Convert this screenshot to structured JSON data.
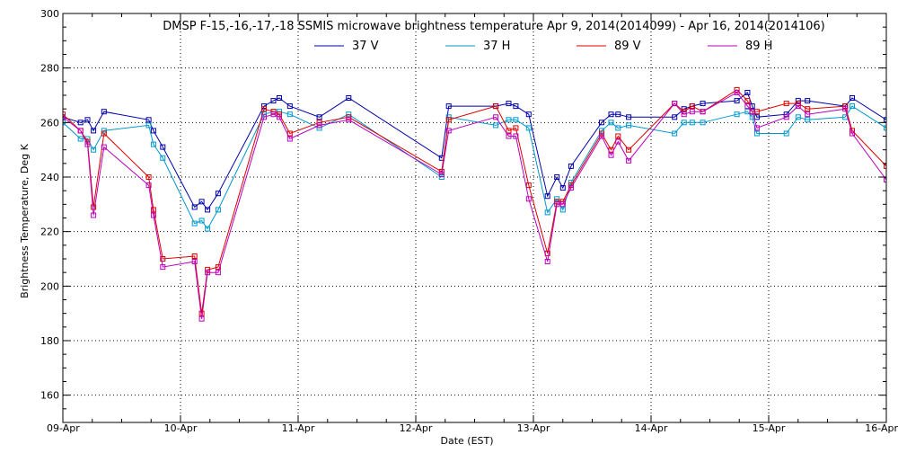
{
  "chart_data": {
    "type": "line",
    "title": "DMSP F-15,-16,-17,-18 SSMIS microwave brightness temperature Apr  9, 2014(2014099) - Apr 16, 2014(2014106)",
    "xlabel": "Date (EST)",
    "ylabel": "Brightness Temperature, Deg K",
    "xlim": [
      0,
      7
    ],
    "ylim": [
      150,
      300
    ],
    "x_ticks": [
      0,
      1,
      2,
      3,
      4,
      5,
      6,
      7
    ],
    "x_tick_labels": [
      "09-Apr",
      "10-Apr",
      "11-Apr",
      "12-Apr",
      "13-Apr",
      "14-Apr",
      "15-Apr",
      "16-Apr"
    ],
    "y_ticks": [
      160,
      180,
      200,
      220,
      240,
      260,
      280,
      300
    ],
    "y_tick_labels": [
      "160",
      "180",
      "200",
      "220",
      "240",
      "260",
      "280",
      "300"
    ],
    "grid": true,
    "legend_position": "top-center",
    "series": [
      {
        "name": "37 V",
        "color": "#0000aa",
        "points": [
          [
            0.0,
            262
          ],
          [
            0.15,
            260
          ],
          [
            0.21,
            261
          ],
          [
            0.26,
            257
          ],
          [
            0.35,
            264
          ],
          [
            0.73,
            261
          ],
          [
            0.77,
            257
          ],
          [
            0.85,
            251
          ],
          [
            1.12,
            229
          ],
          [
            1.18,
            231
          ],
          [
            1.23,
            228
          ],
          [
            1.32,
            234
          ],
          [
            1.71,
            266
          ],
          [
            1.79,
            268
          ],
          [
            1.84,
            269
          ],
          [
            1.93,
            266
          ],
          [
            2.18,
            262
          ],
          [
            2.43,
            269
          ],
          [
            3.22,
            247
          ],
          [
            3.28,
            266
          ],
          [
            3.68,
            266
          ],
          [
            3.79,
            267
          ],
          [
            3.85,
            266
          ],
          [
            3.96,
            263
          ],
          [
            4.12,
            233
          ],
          [
            4.2,
            240
          ],
          [
            4.25,
            236
          ],
          [
            4.32,
            244
          ],
          [
            4.58,
            260
          ],
          [
            4.66,
            263
          ],
          [
            4.72,
            263
          ],
          [
            4.81,
            262
          ],
          [
            5.2,
            262
          ],
          [
            5.28,
            265
          ],
          [
            5.35,
            266
          ],
          [
            5.44,
            267
          ],
          [
            5.73,
            268
          ],
          [
            5.82,
            271
          ],
          [
            5.86,
            266
          ],
          [
            5.9,
            262
          ],
          [
            6.15,
            263
          ],
          [
            6.25,
            268
          ],
          [
            6.33,
            268
          ],
          [
            6.65,
            266
          ],
          [
            6.71,
            269
          ],
          [
            7.0,
            261
          ]
        ]
      },
      {
        "name": "37 H",
        "color": "#0099cc",
        "points": [
          [
            0.0,
            260
          ],
          [
            0.15,
            254
          ],
          [
            0.21,
            254
          ],
          [
            0.26,
            250
          ],
          [
            0.35,
            257
          ],
          [
            0.73,
            259
          ],
          [
            0.77,
            252
          ],
          [
            0.85,
            247
          ],
          [
            1.12,
            223
          ],
          [
            1.18,
            224
          ],
          [
            1.23,
            221
          ],
          [
            1.32,
            228
          ],
          [
            1.71,
            263
          ],
          [
            1.79,
            264
          ],
          [
            1.84,
            264
          ],
          [
            1.93,
            263
          ],
          [
            2.18,
            258
          ],
          [
            2.43,
            263
          ],
          [
            3.22,
            240
          ],
          [
            3.28,
            262
          ],
          [
            3.68,
            259
          ],
          [
            3.79,
            261
          ],
          [
            3.85,
            261
          ],
          [
            3.96,
            258
          ],
          [
            4.12,
            227
          ],
          [
            4.2,
            232
          ],
          [
            4.25,
            228
          ],
          [
            4.32,
            238
          ],
          [
            4.58,
            257
          ],
          [
            4.66,
            260
          ],
          [
            4.72,
            258
          ],
          [
            4.81,
            259
          ],
          [
            5.2,
            256
          ],
          [
            5.28,
            260
          ],
          [
            5.35,
            260
          ],
          [
            5.44,
            260
          ],
          [
            5.73,
            263
          ],
          [
            5.82,
            264
          ],
          [
            5.86,
            262
          ],
          [
            5.9,
            256
          ],
          [
            6.15,
            256
          ],
          [
            6.25,
            262
          ],
          [
            6.33,
            261
          ],
          [
            6.65,
            262
          ],
          [
            6.71,
            266
          ],
          [
            7.0,
            258
          ]
        ]
      },
      {
        "name": "89 V",
        "color": "#dd0000",
        "points": [
          [
            0.0,
            263
          ],
          [
            0.15,
            257
          ],
          [
            0.21,
            253
          ],
          [
            0.26,
            229
          ],
          [
            0.35,
            256
          ],
          [
            0.73,
            240
          ],
          [
            0.77,
            228
          ],
          [
            0.85,
            210
          ],
          [
            1.12,
            211
          ],
          [
            1.18,
            190
          ],
          [
            1.23,
            206
          ],
          [
            1.32,
            207
          ],
          [
            1.71,
            265
          ],
          [
            1.79,
            264
          ],
          [
            1.84,
            263
          ],
          [
            1.93,
            256
          ],
          [
            2.18,
            260
          ],
          [
            2.43,
            262
          ],
          [
            3.22,
            242
          ],
          [
            3.28,
            261
          ],
          [
            3.68,
            266
          ],
          [
            3.79,
            257
          ],
          [
            3.85,
            258
          ],
          [
            3.96,
            237
          ],
          [
            4.12,
            212
          ],
          [
            4.2,
            231
          ],
          [
            4.25,
            231
          ],
          [
            4.32,
            237
          ],
          [
            4.58,
            256
          ],
          [
            4.66,
            250
          ],
          [
            4.72,
            255
          ],
          [
            4.81,
            250
          ],
          [
            5.2,
            267
          ],
          [
            5.28,
            264
          ],
          [
            5.35,
            266
          ],
          [
            5.44,
            264
          ],
          [
            5.73,
            272
          ],
          [
            5.82,
            268
          ],
          [
            5.86,
            264
          ],
          [
            5.9,
            264
          ],
          [
            6.15,
            267
          ],
          [
            6.25,
            267
          ],
          [
            6.33,
            265
          ],
          [
            6.65,
            266
          ],
          [
            6.71,
            257
          ],
          [
            7.0,
            244
          ]
        ]
      },
      {
        "name": "89 H",
        "color": "#bb00bb",
        "points": [
          [
            0.0,
            262
          ],
          [
            0.15,
            257
          ],
          [
            0.21,
            252
          ],
          [
            0.26,
            226
          ],
          [
            0.35,
            251
          ],
          [
            0.73,
            237
          ],
          [
            0.77,
            226
          ],
          [
            0.85,
            207
          ],
          [
            1.12,
            209
          ],
          [
            1.18,
            188
          ],
          [
            1.23,
            205
          ],
          [
            1.32,
            205
          ],
          [
            1.71,
            262
          ],
          [
            1.79,
            263
          ],
          [
            1.84,
            262
          ],
          [
            1.93,
            254
          ],
          [
            2.18,
            259
          ],
          [
            2.43,
            261
          ],
          [
            3.22,
            241
          ],
          [
            3.28,
            257
          ],
          [
            3.68,
            262
          ],
          [
            3.79,
            255
          ],
          [
            3.85,
            255
          ],
          [
            3.96,
            232
          ],
          [
            4.12,
            209
          ],
          [
            4.2,
            230
          ],
          [
            4.25,
            230
          ],
          [
            4.32,
            236
          ],
          [
            4.58,
            255
          ],
          [
            4.66,
            248
          ],
          [
            4.72,
            253
          ],
          [
            4.81,
            246
          ],
          [
            5.2,
            267
          ],
          [
            5.28,
            263
          ],
          [
            5.35,
            264
          ],
          [
            5.44,
            264
          ],
          [
            5.73,
            271
          ],
          [
            5.82,
            266
          ],
          [
            5.86,
            264
          ],
          [
            5.9,
            258
          ],
          [
            6.15,
            262
          ],
          [
            6.25,
            266
          ],
          [
            6.33,
            263
          ],
          [
            6.65,
            265
          ],
          [
            6.71,
            256
          ],
          [
            7.0,
            239
          ]
        ]
      }
    ]
  }
}
